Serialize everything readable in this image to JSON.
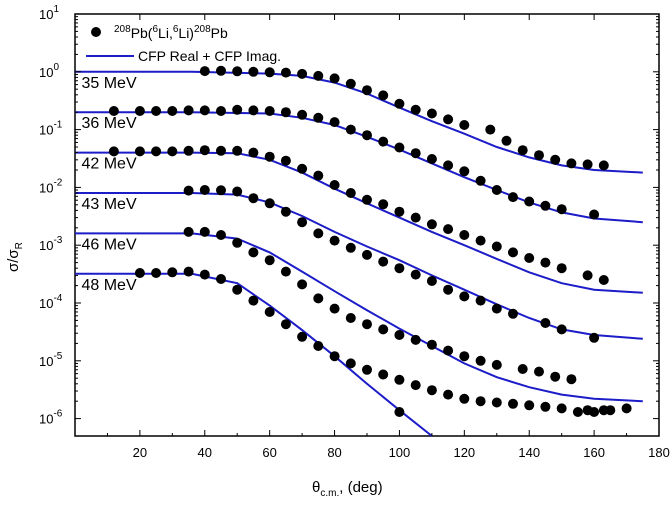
{
  "chart_data": {
    "type": "scatter",
    "yscale": "log",
    "xlim": [
      0,
      180
    ],
    "ylim": [
      5e-07,
      10
    ],
    "xticks": [
      20,
      40,
      60,
      80,
      100,
      120,
      140,
      160,
      180
    ],
    "xtick_labels": [
      "20",
      "40",
      "60",
      "80",
      "100",
      "120",
      "140",
      "160",
      "180"
    ],
    "yticks": [
      1e-06,
      1e-05,
      0.0001,
      0.001,
      0.01,
      0.1,
      1,
      10
    ],
    "ytick_mantissa": "10",
    "ytick_exponents": [
      "-6",
      "-5",
      "-4",
      "-3",
      "-2",
      "-1",
      "0",
      "1"
    ],
    "xlabel_main": "θ",
    "xlabel_sub": "c.m.",
    "xlabel_rest": ", (deg)",
    "ylabel_main": "σ/σ",
    "ylabel_sub": "R",
    "legend": {
      "position": "top-left",
      "data_label_parts": [
        "208",
        "Pb(",
        "6",
        "Li,",
        "6",
        "Li)",
        "208",
        "Pb"
      ],
      "curve_label": "CFP Real + CFP Imag."
    },
    "colors": {
      "curve": "#1c1cc8",
      "points": "#000000"
    },
    "series": [
      {
        "name": "35 MeV",
        "scale": 1,
        "points": [
          [
            40,
            1.03
          ],
          [
            45,
            1.04
          ],
          [
            50,
            1.02
          ],
          [
            55,
            1.0
          ],
          [
            60,
            0.98
          ],
          [
            65,
            0.97
          ],
          [
            70,
            0.92
          ],
          [
            75,
            0.85
          ],
          [
            80,
            0.77
          ],
          [
            85,
            0.62
          ],
          [
            90,
            0.48
          ],
          [
            95,
            0.39
          ],
          [
            100,
            0.28
          ],
          [
            105,
            0.22
          ],
          [
            110,
            0.19
          ],
          [
            115,
            0.15
          ],
          [
            120,
            0.12
          ],
          [
            128,
            0.1
          ],
          [
            133,
            0.064
          ],
          [
            138,
            0.044
          ],
          [
            143,
            0.036
          ],
          [
            148,
            0.03
          ],
          [
            153,
            0.026
          ],
          [
            158,
            0.025
          ],
          [
            163,
            0.024
          ]
        ],
        "curve": [
          [
            0,
            1.0
          ],
          [
            36,
            1.0
          ],
          [
            60,
            0.93
          ],
          [
            70,
            0.85
          ],
          [
            80,
            0.65
          ],
          [
            90,
            0.42
          ],
          [
            100,
            0.24
          ],
          [
            110,
            0.14
          ],
          [
            120,
            0.085
          ],
          [
            130,
            0.05
          ],
          [
            140,
            0.033
          ],
          [
            150,
            0.024
          ],
          [
            160,
            0.02
          ],
          [
            175,
            0.018
          ]
        ]
      },
      {
        "name": "36 MeV",
        "scale": 0.2,
        "points": [
          [
            12,
            0.21
          ],
          [
            20,
            0.21
          ],
          [
            25,
            0.21
          ],
          [
            30,
            0.21
          ],
          [
            35,
            0.215
          ],
          [
            40,
            0.215
          ],
          [
            45,
            0.21
          ],
          [
            50,
            0.22
          ],
          [
            55,
            0.215
          ],
          [
            60,
            0.21
          ],
          [
            65,
            0.2
          ],
          [
            70,
            0.18
          ],
          [
            75,
            0.16
          ],
          [
            80,
            0.135
          ],
          [
            85,
            0.1
          ],
          [
            90,
            0.08
          ],
          [
            95,
            0.062
          ],
          [
            100,
            0.049
          ],
          [
            105,
            0.039
          ],
          [
            110,
            0.031
          ],
          [
            115,
            0.024
          ],
          [
            120,
            0.019
          ],
          [
            125,
            0.013
          ],
          [
            130,
            0.009
          ],
          [
            135,
            0.0068
          ],
          [
            140,
            0.0057
          ],
          [
            145,
            0.0048
          ],
          [
            150,
            0.0042
          ],
          [
            160,
            0.0034
          ]
        ],
        "curve": [
          [
            0,
            0.2
          ],
          [
            36,
            0.2
          ],
          [
            60,
            0.19
          ],
          [
            70,
            0.16
          ],
          [
            80,
            0.12
          ],
          [
            90,
            0.075
          ],
          [
            100,
            0.045
          ],
          [
            110,
            0.026
          ],
          [
            120,
            0.015
          ],
          [
            130,
            0.009
          ],
          [
            140,
            0.0055
          ],
          [
            150,
            0.0037
          ],
          [
            160,
            0.0029
          ],
          [
            175,
            0.0025
          ]
        ]
      },
      {
        "name": "42 MeV",
        "scale": 0.04,
        "points": [
          [
            12,
            0.042
          ],
          [
            20,
            0.042
          ],
          [
            25,
            0.042
          ],
          [
            30,
            0.042
          ],
          [
            35,
            0.043
          ],
          [
            40,
            0.044
          ],
          [
            45,
            0.043
          ],
          [
            50,
            0.043
          ],
          [
            55,
            0.04
          ],
          [
            60,
            0.034
          ],
          [
            65,
            0.029
          ],
          [
            70,
            0.021
          ],
          [
            75,
            0.016
          ],
          [
            80,
            0.011
          ],
          [
            85,
            0.008
          ],
          [
            90,
            0.0061
          ],
          [
            95,
            0.0051
          ],
          [
            100,
            0.0038
          ],
          [
            105,
            0.003
          ],
          [
            110,
            0.0023
          ],
          [
            115,
            0.0019
          ],
          [
            120,
            0.0015
          ],
          [
            125,
            0.0012
          ],
          [
            130,
            0.00095
          ],
          [
            135,
            0.00075
          ],
          [
            140,
            0.0006
          ],
          [
            145,
            0.0005
          ],
          [
            150,
            0.0004
          ],
          [
            158,
            0.0003
          ],
          [
            163,
            0.00025
          ]
        ],
        "curve": [
          [
            0,
            0.04
          ],
          [
            36,
            0.04
          ],
          [
            50,
            0.039
          ],
          [
            60,
            0.03
          ],
          [
            70,
            0.018
          ],
          [
            80,
            0.0095
          ],
          [
            90,
            0.0053
          ],
          [
            100,
            0.003
          ],
          [
            110,
            0.0017
          ],
          [
            120,
            0.001
          ],
          [
            130,
            0.00058
          ],
          [
            140,
            0.00034
          ],
          [
            150,
            0.00022
          ],
          [
            160,
            0.00017
          ],
          [
            175,
            0.00015
          ]
        ]
      },
      {
        "name": "43 MeV",
        "scale": 0.008,
        "points": [
          [
            35,
            0.0088
          ],
          [
            40,
            0.009
          ],
          [
            45,
            0.0089
          ],
          [
            50,
            0.0085
          ],
          [
            55,
            0.0065
          ],
          [
            60,
            0.0053
          ],
          [
            65,
            0.0038
          ],
          [
            70,
            0.0025
          ],
          [
            75,
            0.0016
          ],
          [
            80,
            0.0012
          ],
          [
            85,
            0.0009
          ],
          [
            90,
            0.00068
          ],
          [
            95,
            0.00052
          ],
          [
            100,
            0.0004
          ],
          [
            105,
            0.00031
          ],
          [
            110,
            0.00024
          ],
          [
            115,
            0.00017
          ],
          [
            120,
            0.00013
          ],
          [
            125,
            0.00011
          ],
          [
            130,
            8e-05
          ],
          [
            135,
            6.5e-05
          ],
          [
            145,
            4.5e-05
          ],
          [
            150,
            3.5e-05
          ],
          [
            160,
            2.5e-05
          ]
        ],
        "curve": [
          [
            0,
            0.008
          ],
          [
            36,
            0.008
          ],
          [
            50,
            0.0075
          ],
          [
            60,
            0.0055
          ],
          [
            70,
            0.0032
          ],
          [
            80,
            0.0017
          ],
          [
            90,
            0.00095
          ],
          [
            100,
            0.00055
          ],
          [
            110,
            0.0003
          ],
          [
            120,
            0.00017
          ],
          [
            130,
            9.5e-05
          ],
          [
            140,
            5.5e-05
          ],
          [
            150,
            3.5e-05
          ],
          [
            160,
            2.8e-05
          ],
          [
            175,
            2.4e-05
          ]
        ]
      },
      {
        "name": "46 MeV",
        "scale": 0.0016,
        "points": [
          [
            35,
            0.0017
          ],
          [
            40,
            0.0017
          ],
          [
            45,
            0.0015
          ],
          [
            50,
            0.0011
          ],
          [
            55,
            0.00075
          ],
          [
            60,
            0.00055
          ],
          [
            65,
            0.00035
          ],
          [
            70,
            0.00021
          ],
          [
            75,
            0.00012
          ],
          [
            80,
            8e-05
          ],
          [
            85,
            5.5e-05
          ],
          [
            90,
            4.3e-05
          ],
          [
            95,
            3.5e-05
          ],
          [
            100,
            2.8e-05
          ],
          [
            105,
            2.3e-05
          ],
          [
            110,
            1.9e-05
          ],
          [
            115,
            1.5e-05
          ],
          [
            120,
            1.2e-05
          ],
          [
            125,
            1e-05
          ],
          [
            130,
            8.5e-06
          ],
          [
            138,
            7.2e-06
          ],
          [
            143,
            6.5e-06
          ],
          [
            148,
            5.3e-06
          ],
          [
            153,
            4.8e-06
          ],
          [
            158,
            1.4e-06
          ],
          [
            163,
            1.4e-06
          ]
        ],
        "curve": [
          [
            0,
            0.0016
          ],
          [
            36,
            0.0016
          ],
          [
            50,
            0.0013
          ],
          [
            60,
            0.00075
          ],
          [
            70,
            0.00035
          ],
          [
            80,
            0.00016
          ],
          [
            90,
            7.5e-05
          ],
          [
            100,
            3.6e-05
          ],
          [
            110,
            1.8e-05
          ],
          [
            120,
            9e-06
          ],
          [
            130,
            5.2e-06
          ],
          [
            140,
            3.5e-06
          ],
          [
            150,
            2.6e-06
          ],
          [
            160,
            2.2e-06
          ],
          [
            175,
            2e-06
          ]
        ]
      },
      {
        "name": "48 MeV",
        "scale": 0.00032,
        "points": [
          [
            20,
            0.00033
          ],
          [
            25,
            0.00033
          ],
          [
            30,
            0.00034
          ],
          [
            35,
            0.00035
          ],
          [
            40,
            0.00031
          ],
          [
            45,
            0.00026
          ],
          [
            50,
            0.00017
          ],
          [
            55,
            0.00011
          ],
          [
            60,
            7e-05
          ],
          [
            65,
            4.3e-05
          ],
          [
            70,
            2.6e-05
          ],
          [
            75,
            1.8e-05
          ],
          [
            80,
            1.2e-05
          ],
          [
            85,
            9e-06
          ],
          [
            90,
            7e-06
          ],
          [
            95,
            5.8e-06
          ],
          [
            100,
            4.7e-06
          ],
          [
            105,
            3.8e-06
          ],
          [
            110,
            3.1e-06
          ],
          [
            115,
            2.6e-06
          ],
          [
            120,
            2.2e-06
          ],
          [
            125,
            2e-06
          ],
          [
            130,
            1.9e-06
          ],
          [
            135,
            1.8e-06
          ],
          [
            140,
            1.7e-06
          ],
          [
            145,
            1.6e-06
          ],
          [
            150,
            1.5e-06
          ],
          [
            155,
            1.3e-06
          ],
          [
            160,
            1.3e-06
          ],
          [
            165,
            1.4e-06
          ],
          [
            170,
            1.5e-06
          ]
        ],
        "curve": [
          [
            0,
            0.00032
          ],
          [
            36,
            0.00032
          ],
          [
            50,
            0.00022
          ],
          [
            60,
            9e-05
          ],
          [
            70,
            3.4e-05
          ],
          [
            80,
            1.2e-05
          ],
          [
            90,
            4e-06
          ],
          [
            100,
            1.4e-06
          ],
          [
            110,
            5e-07
          ]
        ]
      }
    ],
    "extra_points": [
      [
        100,
        1.3e-06
      ]
    ]
  }
}
